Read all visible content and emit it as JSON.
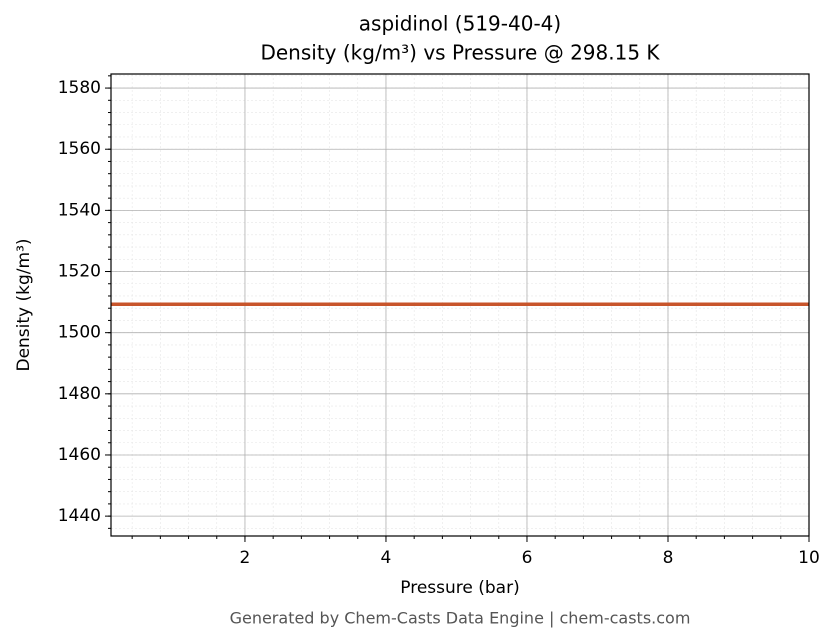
{
  "chart_data": {
    "type": "line",
    "title": "aspidinol (519-40-4)",
    "subtitle": "Density (kg/m³) vs Pressure @ 298.15 K",
    "x_label": "Pressure (bar)",
    "y_label": "Density (kg/m³)",
    "footer": "Generated by Chem-Casts Data Engine | chem-casts.com",
    "x": [
      0.1,
      10
    ],
    "series": [
      {
        "name": "Density",
        "color": "#c8552b",
        "values": [
          1509.3,
          1509.3
        ]
      }
    ],
    "xlim": [
      0.1,
      10
    ],
    "xticks": [
      2,
      4,
      6,
      8,
      10
    ],
    "ylim": [
      1433.5,
      1584.6
    ],
    "yticks": [
      1440,
      1460,
      1480,
      1500,
      1520,
      1540,
      1560,
      1580
    ],
    "grid": true,
    "minor_grid": true
  }
}
